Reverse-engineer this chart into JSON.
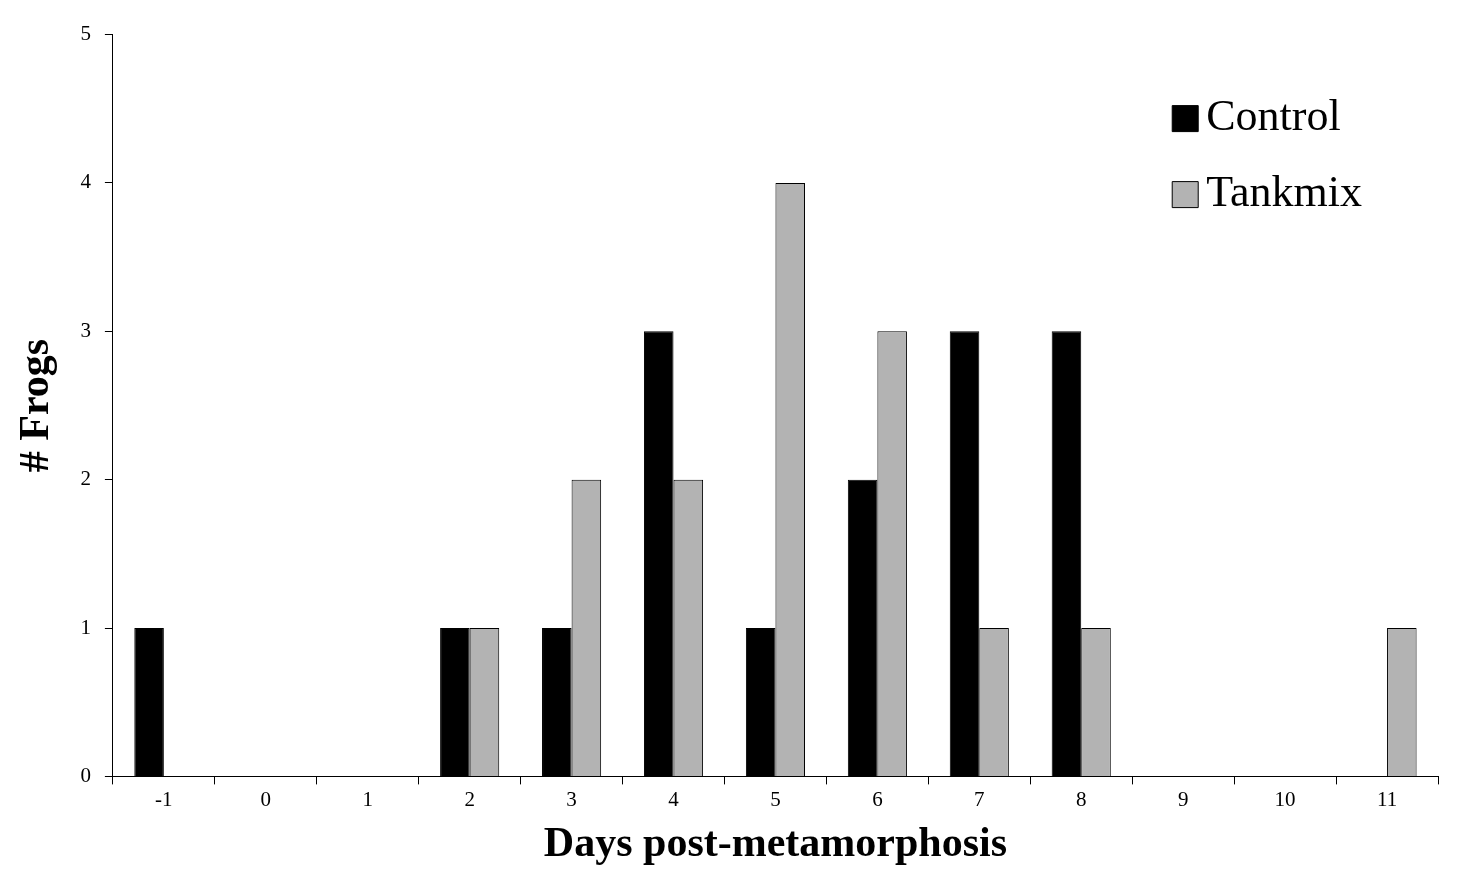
{
  "chart_data": {
    "type": "bar",
    "xlabel": "Days post-metamorphosis",
    "ylabel": "# Frogs",
    "categories": [
      "-1",
      "0",
      "1",
      "2",
      "3",
      "4",
      "5",
      "6",
      "7",
      "8",
      "9",
      "10",
      "11"
    ],
    "series": [
      {
        "name": "Control",
        "color": "#000000",
        "values": [
          1,
          0,
          0,
          1,
          1,
          3,
          1,
          2,
          3,
          3,
          0,
          0,
          0
        ]
      },
      {
        "name": "Tankmix",
        "color": "#b3b3b3",
        "values": [
          0,
          0,
          0,
          1,
          2,
          2,
          4,
          3,
          1,
          1,
          0,
          0,
          1
        ]
      }
    ],
    "ylim": [
      0,
      5
    ],
    "yticks": [
      0,
      1,
      2,
      3,
      4,
      5
    ],
    "grid": false,
    "legend": "top right"
  }
}
